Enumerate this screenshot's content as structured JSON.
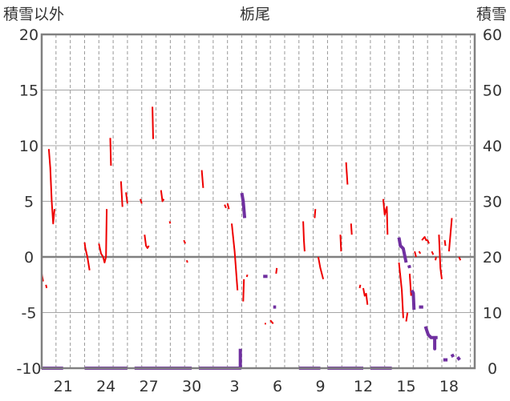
{
  "chart_data": {
    "type": "line",
    "title": "栃尾",
    "left_axis_label": "積雪以外",
    "right_axis_label": "積雪",
    "left_ylim": [
      -10,
      20
    ],
    "right_ylim": [
      0,
      60
    ],
    "left_yticks": [
      20,
      15,
      10,
      5,
      0,
      -5,
      -10
    ],
    "right_yticks": [
      60,
      50,
      40,
      30,
      20,
      10,
      0
    ],
    "xlim": [
      0,
      30.3
    ],
    "xticks": [
      {
        "x": 1.5,
        "label": "21"
      },
      {
        "x": 4.5,
        "label": "24"
      },
      {
        "x": 7.5,
        "label": "27"
      },
      {
        "x": 10.5,
        "label": "30"
      },
      {
        "x": 13.5,
        "label": "3"
      },
      {
        "x": 16.5,
        "label": "6"
      },
      {
        "x": 19.5,
        "label": "9"
      },
      {
        "x": 22.5,
        "label": "12"
      },
      {
        "x": 25.5,
        "label": "15"
      },
      {
        "x": 28.5,
        "label": "18"
      }
    ],
    "grid_major_y": true,
    "grid_minor_x": "dashed",
    "colors": {
      "temperature": "#ee0000",
      "snow_depth": "#7030a0",
      "zero_line": "#808080",
      "frame": "#808080"
    },
    "series": [
      {
        "axis": "left",
        "color": "#ee0000",
        "segments": [
          [
            [
              0,
              -1.5
            ],
            [
              0.1,
              -2.2
            ]
          ],
          [
            [
              0.3,
              -2.5
            ],
            [
              0.35,
              -2.8
            ]
          ],
          [
            [
              0.5,
              9.7
            ],
            [
              0.6,
              8.0
            ],
            [
              0.7,
              5.0
            ],
            [
              0.8,
              3.0
            ],
            [
              0.9,
              4.3
            ]
          ],
          [
            [
              3.0,
              1.3
            ],
            [
              3.05,
              0.8
            ],
            [
              3.2,
              0.0
            ],
            [
              3.35,
              -1.2
            ]
          ],
          [
            [
              4.0,
              1.2
            ],
            [
              4.15,
              0.3
            ],
            [
              4.3,
              0.0
            ],
            [
              4.4,
              -0.5
            ],
            [
              4.5,
              0.0
            ],
            [
              4.55,
              4.3
            ]
          ],
          [
            [
              4.8,
              10.7
            ],
            [
              4.85,
              8.2
            ]
          ],
          [
            [
              5.55,
              6.8
            ],
            [
              5.65,
              4.5
            ]
          ],
          [
            [
              5.9,
              5.8
            ],
            [
              6.0,
              4.8
            ]
          ],
          [
            [
              6.9,
              5.2
            ],
            [
              7.0,
              4.8
            ]
          ],
          [
            [
              7.2,
              2.0
            ],
            [
              7.3,
              1.0
            ],
            [
              7.4,
              0.8
            ],
            [
              7.5,
              1.0
            ]
          ],
          [
            [
              7.75,
              13.5
            ],
            [
              7.8,
              10.6
            ]
          ],
          [
            [
              8.35,
              6.0
            ],
            [
              8.45,
              5.0
            ],
            [
              8.55,
              5.2
            ]
          ],
          [
            [
              8.95,
              3.2
            ],
            [
              9.0,
              3.0
            ]
          ],
          [
            [
              9.95,
              1.5
            ],
            [
              10.05,
              1.2
            ]
          ],
          [
            [
              10.15,
              -0.3
            ],
            [
              10.2,
              -0.5
            ]
          ],
          [
            [
              11.2,
              7.8
            ],
            [
              11.3,
              6.2
            ]
          ],
          [
            [
              12.8,
              4.7
            ],
            [
              12.9,
              4.4
            ]
          ],
          [
            [
              13.0,
              4.8
            ],
            [
              13.1,
              4.3
            ]
          ],
          [
            [
              13.3,
              3.0
            ],
            [
              13.5,
              0.5
            ],
            [
              13.7,
              -3.0
            ]
          ],
          [
            [
              14.15,
              -2.0
            ],
            [
              14.1,
              -4.0
            ]
          ],
          [
            [
              14.35,
              -1.8
            ],
            [
              14.4,
              -1.6
            ]
          ],
          [
            [
              15.6,
              -6.0
            ],
            [
              15.7,
              -6.0
            ]
          ],
          [
            [
              16.0,
              -5.7
            ],
            [
              16.2,
              -6.0
            ]
          ],
          [
            [
              16.4,
              -1.5
            ],
            [
              16.45,
              -1.0
            ]
          ],
          [
            [
              18.3,
              3.2
            ],
            [
              18.35,
              1.5
            ],
            [
              18.4,
              0.5
            ]
          ],
          [
            [
              19.1,
              3.5
            ],
            [
              19.15,
              4.3
            ]
          ],
          [
            [
              19.35,
              0.0
            ],
            [
              19.5,
              -1.0
            ],
            [
              19.7,
              -2.0
            ]
          ],
          [
            [
              20.9,
              2.0
            ],
            [
              20.95,
              0.5
            ]
          ],
          [
            [
              21.3,
              8.5
            ],
            [
              21.4,
              6.5
            ]
          ],
          [
            [
              21.65,
              3.0
            ],
            [
              21.7,
              2.0
            ]
          ],
          [
            [
              22.25,
              -2.8
            ],
            [
              22.3,
              -2.5
            ]
          ],
          [
            [
              22.5,
              -2.8
            ],
            [
              22.6,
              -3.5
            ],
            [
              22.7,
              -3.3
            ],
            [
              22.8,
              -4.3
            ]
          ],
          [
            [
              23.9,
              5.2
            ],
            [
              24.0,
              3.8
            ],
            [
              24.15,
              4.5
            ],
            [
              24.2,
              2.0
            ]
          ],
          [
            [
              25.0,
              -0.5
            ],
            [
              25.2,
              -3.0
            ],
            [
              25.3,
              -5.5
            ]
          ],
          [
            [
              25.5,
              -5.8
            ],
            [
              25.6,
              -5.0
            ]
          ],
          [
            [
              25.75,
              -1.5
            ],
            [
              25.85,
              -3.5
            ]
          ],
          [
            [
              26.1,
              0.5
            ],
            [
              26.2,
              0.0
            ]
          ],
          [
            [
              26.4,
              0.5
            ],
            [
              26.5,
              0.3
            ]
          ],
          [
            [
              26.6,
              1.5
            ],
            [
              26.8,
              1.8
            ],
            [
              26.9,
              1.5
            ],
            [
              27.0,
              1.5
            ],
            [
              27.1,
              1.2
            ]
          ],
          [
            [
              27.3,
              0.5
            ],
            [
              27.4,
              0.2
            ]
          ],
          [
            [
              27.55,
              -0.3
            ],
            [
              27.6,
              0.0
            ]
          ],
          [
            [
              27.8,
              2.0
            ],
            [
              27.9,
              -1.0
            ],
            [
              28.0,
              -2.0
            ]
          ],
          [
            [
              28.2,
              1.5
            ],
            [
              28.25,
              1.0
            ]
          ],
          [
            [
              28.5,
              0.5
            ],
            [
              28.7,
              3.5
            ]
          ],
          [
            [
              29.2,
              0.0
            ],
            [
              29.3,
              -0.3
            ]
          ]
        ]
      },
      {
        "axis": "right",
        "color": "#7030a0",
        "segments": [
          [
            [
              0,
              0
            ],
            [
              1.5,
              0
            ]
          ],
          [
            [
              3.0,
              0
            ],
            [
              6.0,
              0
            ]
          ],
          [
            [
              6.5,
              0
            ],
            [
              10.5,
              0
            ]
          ],
          [
            [
              11.0,
              0
            ],
            [
              13.9,
              0
            ],
            [
              13.9,
              3.5
            ]
          ],
          [
            [
              14.0,
              31.5
            ],
            [
              14.1,
              30.0
            ],
            [
              14.2,
              27.0
            ]
          ],
          [
            [
              15.5,
              16.5
            ],
            [
              15.8,
              16.5
            ]
          ],
          [
            [
              16.2,
              11.0
            ],
            [
              16.4,
              11.0
            ]
          ],
          [
            [
              18.0,
              0
            ],
            [
              19.5,
              0
            ]
          ],
          [
            [
              20.0,
              0
            ],
            [
              22.5,
              0
            ]
          ],
          [
            [
              23.0,
              0
            ],
            [
              24.5,
              0
            ]
          ],
          [
            [
              25.0,
              23.5
            ],
            [
              25.1,
              22.0
            ],
            [
              25.3,
              21.5
            ],
            [
              25.5,
              19.0
            ]
          ],
          [
            [
              25.7,
              18.5
            ],
            [
              25.75,
              18.0
            ]
          ],
          [
            [
              25.9,
              14.0
            ],
            [
              26.0,
              13.5
            ],
            [
              26.05,
              10.5
            ]
          ],
          [
            [
              26.4,
              11.0
            ],
            [
              26.7,
              11.0
            ]
          ],
          [
            [
              26.85,
              7.5
            ],
            [
              27.05,
              6.0
            ],
            [
              27.25,
              5.5
            ],
            [
              27.5,
              5.5
            ],
            [
              27.5,
              3.5
            ],
            [
              27.5,
              5.5
            ],
            [
              27.7,
              5.5
            ]
          ],
          [
            [
              28.1,
              1.5
            ],
            [
              28.4,
              1.5
            ]
          ],
          [
            [
              28.7,
              2.5
            ],
            [
              28.8,
              2.0
            ]
          ],
          [
            [
              29.1,
              2.0
            ],
            [
              29.25,
              1.5
            ]
          ]
        ]
      }
    ]
  }
}
